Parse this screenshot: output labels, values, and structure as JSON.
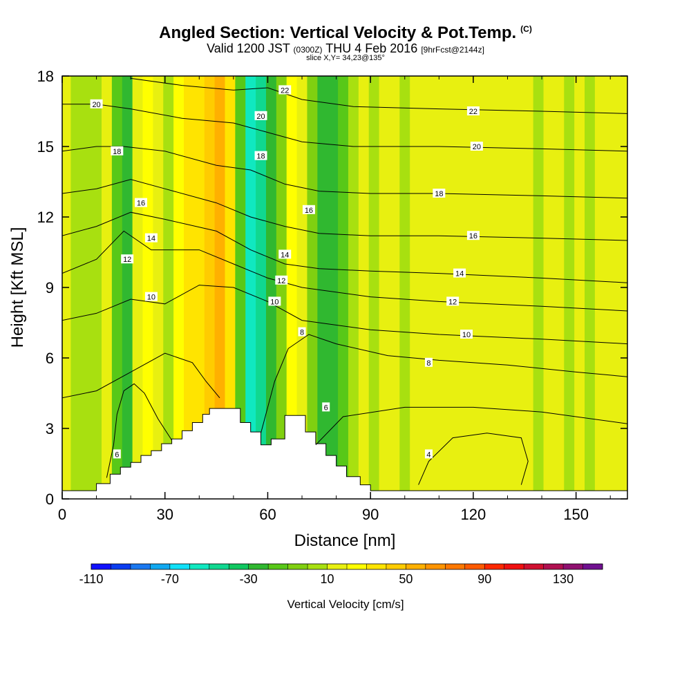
{
  "header": {
    "title": "Angled Section: Vertical Velocity & Pot.Temp.",
    "title_suffix": "(C)",
    "subtitle_a": "Valid 1200 JST",
    "subtitle_b": "(0300Z)",
    "subtitle_c": "THU 4 Feb 2016",
    "subtitle_d": "[9hrFcst@2144z]",
    "slice": "slice X,Y= 34,23@135°"
  },
  "chart_data": {
    "type": "heatmap",
    "title": "Angled Section: Vertical Velocity & Pot.Temp. (C)",
    "xlabel": "Distance [nm]",
    "ylabel": "Height [Kft MSL]",
    "xlim": [
      0,
      165
    ],
    "ylim": [
      0,
      18
    ],
    "x_ticks": [
      "0",
      "30",
      "60",
      "90",
      "120",
      "150"
    ],
    "x_tick_values": [
      0,
      30,
      60,
      90,
      120,
      150
    ],
    "y_ticks": [
      "0",
      "3",
      "6",
      "9",
      "12",
      "15",
      "18"
    ],
    "y_tick_values": [
      0,
      3,
      6,
      9,
      12,
      15,
      18
    ],
    "colorbar": {
      "title": "Vertical Velocity [cm/s]",
      "min": -110,
      "step": 10,
      "labels": [
        "-110",
        "-70",
        "-30",
        "10",
        "50",
        "90",
        "130"
      ],
      "label_values": [
        -110,
        -70,
        -30,
        10,
        50,
        90,
        130
      ],
      "colors": [
        "#1010ff",
        "#0a3cf0",
        "#1a78f0",
        "#10a8f0",
        "#10e0f8",
        "#10e8c0",
        "#10d890",
        "#10c860",
        "#30b830",
        "#58c818",
        "#80d010",
        "#a8e010",
        "#e8f010",
        "#ffff00",
        "#ffe400",
        "#ffcc00",
        "#ffb000",
        "#ff9400",
        "#ff7800",
        "#ff5a00",
        "#ff2800",
        "#f01010",
        "#d01030",
        "#b01050",
        "#901070",
        "#701090"
      ]
    },
    "velocity_columns": [
      {
        "x": 0,
        "value": 12
      },
      {
        "x": 5,
        "value": 8
      },
      {
        "x": 10,
        "value": 5
      },
      {
        "x": 13,
        "value": 15
      },
      {
        "x": 16,
        "value": -20
      },
      {
        "x": 19,
        "value": -30
      },
      {
        "x": 22,
        "value": 10
      },
      {
        "x": 25,
        "value": 22
      },
      {
        "x": 28,
        "value": 14
      },
      {
        "x": 31,
        "value": 6
      },
      {
        "x": 34,
        "value": 20
      },
      {
        "x": 37,
        "value": 32
      },
      {
        "x": 40,
        "value": 38
      },
      {
        "x": 43,
        "value": 48
      },
      {
        "x": 46,
        "value": 50
      },
      {
        "x": 49,
        "value": 34
      },
      {
        "x": 52,
        "value": -20
      },
      {
        "x": 55,
        "value": -55
      },
      {
        "x": 58,
        "value": -48
      },
      {
        "x": 61,
        "value": -30
      },
      {
        "x": 64,
        "value": -5
      },
      {
        "x": 67,
        "value": 22
      },
      {
        "x": 70,
        "value": 14
      },
      {
        "x": 73,
        "value": -10
      },
      {
        "x": 76,
        "value": -22
      },
      {
        "x": 79,
        "value": -28
      },
      {
        "x": 82,
        "value": -12
      },
      {
        "x": 85,
        "value": 8
      },
      {
        "x": 88,
        "value": 12
      },
      {
        "x": 91,
        "value": 2
      },
      {
        "x": 94,
        "value": 10
      },
      {
        "x": 97,
        "value": 14
      },
      {
        "x": 100,
        "value": 0
      },
      {
        "x": 103,
        "value": 12
      },
      {
        "x": 106,
        "value": 10
      },
      {
        "x": 109,
        "value": 14
      },
      {
        "x": 112,
        "value": 12
      },
      {
        "x": 115,
        "value": 16
      },
      {
        "x": 118,
        "value": 12
      },
      {
        "x": 121,
        "value": 14
      },
      {
        "x": 124,
        "value": 10
      },
      {
        "x": 127,
        "value": 12
      },
      {
        "x": 130,
        "value": 14
      },
      {
        "x": 133,
        "value": 10
      },
      {
        "x": 136,
        "value": 12
      },
      {
        "x": 139,
        "value": 4
      },
      {
        "x": 142,
        "value": 12
      },
      {
        "x": 145,
        "value": 16
      },
      {
        "x": 148,
        "value": 6
      },
      {
        "x": 151,
        "value": 10
      },
      {
        "x": 154,
        "value": 8
      },
      {
        "x": 157,
        "value": 12
      },
      {
        "x": 160,
        "value": 10
      },
      {
        "x": 163,
        "value": 12
      },
      {
        "x": 165,
        "value": 10
      }
    ],
    "terrain": [
      [
        0,
        0.35
      ],
      [
        10,
        0.35
      ],
      [
        10,
        0.65
      ],
      [
        14,
        0.65
      ],
      [
        14,
        1.05
      ],
      [
        17,
        1.05
      ],
      [
        17,
        1.35
      ],
      [
        20,
        1.35
      ],
      [
        20,
        1.55
      ],
      [
        23,
        1.55
      ],
      [
        23,
        1.85
      ],
      [
        26,
        1.85
      ],
      [
        26,
        2.05
      ],
      [
        29,
        2.05
      ],
      [
        29,
        2.35
      ],
      [
        32,
        2.35
      ],
      [
        32,
        2.55
      ],
      [
        35,
        2.55
      ],
      [
        35,
        2.9
      ],
      [
        38,
        2.9
      ],
      [
        38,
        3.25
      ],
      [
        41,
        3.25
      ],
      [
        41,
        3.6
      ],
      [
        43,
        3.6
      ],
      [
        43,
        3.85
      ],
      [
        52,
        3.85
      ],
      [
        52,
        3.25
      ],
      [
        55,
        3.25
      ],
      [
        55,
        2.85
      ],
      [
        58,
        2.85
      ],
      [
        58,
        2.3
      ],
      [
        61,
        2.3
      ],
      [
        61,
        2.55
      ],
      [
        65,
        2.55
      ],
      [
        65,
        3.55
      ],
      [
        71,
        3.55
      ],
      [
        71,
        2.85
      ],
      [
        74,
        2.85
      ],
      [
        74,
        2.35
      ],
      [
        77,
        2.35
      ],
      [
        77,
        1.85
      ],
      [
        80,
        1.85
      ],
      [
        80,
        1.4
      ],
      [
        83,
        1.4
      ],
      [
        83,
        0.95
      ],
      [
        87,
        0.95
      ],
      [
        87,
        0.6
      ],
      [
        90,
        0.6
      ],
      [
        90,
        0.35
      ],
      [
        165,
        0.35
      ]
    ],
    "theta_contours": [
      {
        "level": 4,
        "label": "4",
        "points": [
          [
            104,
            0.6
          ],
          [
            107,
            1.6
          ],
          [
            114,
            2.6
          ],
          [
            124,
            2.8
          ],
          [
            134,
            2.6
          ],
          [
            136,
            1.6
          ],
          [
            134,
            0.6
          ]
        ]
      },
      {
        "level": 6,
        "label": "6",
        "points": [
          [
            13,
            0.9
          ],
          [
            15,
            2.3
          ],
          [
            16,
            3.6
          ],
          [
            18,
            4.6
          ],
          [
            21,
            4.9
          ],
          [
            24,
            4.5
          ],
          [
            28,
            3.4
          ],
          [
            32,
            2.5
          ]
        ],
        "label_at": [
          16,
          1.9
        ]
      },
      {
        "level": 6,
        "label": "6",
        "points": [
          [
            74,
            2.3
          ],
          [
            82,
            3.5
          ],
          [
            100,
            3.9
          ],
          [
            120,
            3.9
          ],
          [
            140,
            3.7
          ],
          [
            165,
            3.2
          ]
        ],
        "label_at": [
          77,
          3.9
        ]
      },
      {
        "level": 8,
        "label": "8",
        "points": [
          [
            0,
            4.3
          ],
          [
            10,
            4.6
          ],
          [
            20,
            5.4
          ],
          [
            30,
            6.2
          ],
          [
            38,
            5.8
          ],
          [
            42,
            5.0
          ],
          [
            46,
            4.3
          ]
        ],
        "label_at": [
          70,
          7.1
        ]
      },
      {
        "level": 8,
        "label": "8",
        "points": [
          [
            58,
            2.8
          ],
          [
            62,
            5.0
          ],
          [
            66,
            6.4
          ],
          [
            72,
            7.0
          ],
          [
            80,
            6.6
          ],
          [
            95,
            6.1
          ],
          [
            110,
            5.9
          ],
          [
            130,
            5.7
          ],
          [
            150,
            5.4
          ],
          [
            165,
            5.2
          ]
        ],
        "label_at": [
          107,
          5.8
        ]
      },
      {
        "level": 10,
        "label": "10",
        "points": [
          [
            0,
            7.6
          ],
          [
            10,
            7.9
          ],
          [
            20,
            8.5
          ],
          [
            30,
            8.3
          ],
          [
            40,
            9.1
          ],
          [
            50,
            9.0
          ],
          [
            60,
            8.4
          ],
          [
            70,
            7.6
          ],
          [
            90,
            7.2
          ],
          [
            110,
            7.0
          ],
          [
            140,
            6.8
          ],
          [
            165,
            6.6
          ]
        ],
        "label_at": [
          118,
          7.0
        ]
      },
      {
        "level": 12,
        "label": "12",
        "points": [
          [
            0,
            9.6
          ],
          [
            10,
            10.2
          ],
          [
            18,
            11.4
          ],
          [
            26,
            10.6
          ],
          [
            40,
            10.6
          ],
          [
            50,
            10.0
          ],
          [
            60,
            9.4
          ],
          [
            70,
            9.0
          ],
          [
            90,
            8.6
          ],
          [
            110,
            8.4
          ],
          [
            140,
            8.2
          ],
          [
            165,
            8.0
          ]
        ],
        "label_at": [
          114,
          8.4
        ]
      },
      {
        "level": 14,
        "label": "14",
        "points": [
          [
            0,
            11.2
          ],
          [
            10,
            11.6
          ],
          [
            20,
            12.2
          ],
          [
            30,
            11.9
          ],
          [
            45,
            11.4
          ],
          [
            55,
            10.6
          ],
          [
            65,
            10.0
          ],
          [
            75,
            9.8
          ],
          [
            90,
            9.7
          ],
          [
            110,
            9.6
          ],
          [
            140,
            9.4
          ],
          [
            165,
            9.2
          ]
        ],
        "label_at": [
          116,
          9.6
        ]
      },
      {
        "level": 16,
        "label": "16",
        "points": [
          [
            0,
            13.0
          ],
          [
            10,
            13.2
          ],
          [
            20,
            13.6
          ],
          [
            30,
            13.2
          ],
          [
            45,
            12.6
          ],
          [
            55,
            12.0
          ],
          [
            65,
            11.6
          ],
          [
            75,
            11.3
          ],
          [
            90,
            11.2
          ],
          [
            110,
            11.2
          ],
          [
            140,
            11.1
          ],
          [
            165,
            11.0
          ]
        ],
        "label_at": [
          120,
          11.2
        ]
      },
      {
        "level": 18,
        "label": "18",
        "points": [
          [
            0,
            14.8
          ],
          [
            10,
            15.0
          ],
          [
            18,
            15.0
          ],
          [
            30,
            14.8
          ],
          [
            45,
            14.2
          ],
          [
            55,
            14.0
          ],
          [
            65,
            13.4
          ],
          [
            75,
            13.1
          ],
          [
            90,
            13.0
          ],
          [
            110,
            13.0
          ],
          [
            140,
            12.9
          ],
          [
            165,
            12.8
          ]
        ],
        "label_at": [
          110,
          13.0
        ]
      },
      {
        "level": 20,
        "label": "20",
        "points": [
          [
            0,
            16.8
          ],
          [
            10,
            16.8
          ],
          [
            20,
            16.6
          ],
          [
            35,
            16.2
          ],
          [
            50,
            16.0
          ],
          [
            60,
            15.6
          ],
          [
            70,
            15.2
          ],
          [
            85,
            15.0
          ],
          [
            110,
            15.0
          ],
          [
            140,
            14.9
          ],
          [
            165,
            14.8
          ]
        ],
        "label_at": [
          121,
          15.0
        ]
      },
      {
        "level": 22,
        "label": "22",
        "points": [
          [
            20,
            17.9
          ],
          [
            35,
            17.6
          ],
          [
            50,
            17.4
          ],
          [
            60,
            17.5
          ],
          [
            70,
            17.0
          ],
          [
            85,
            16.7
          ],
          [
            110,
            16.6
          ],
          [
            140,
            16.5
          ],
          [
            165,
            16.4
          ]
        ],
        "label_at": [
          120,
          16.5
        ]
      }
    ],
    "extra_contour_labels": [
      {
        "label": "20",
        "x": 10,
        "y": 16.8
      },
      {
        "label": "18",
        "x": 16,
        "y": 14.8
      },
      {
        "label": "16",
        "x": 23,
        "y": 12.6
      },
      {
        "label": "14",
        "x": 26,
        "y": 11.1
      },
      {
        "label": "12",
        "x": 19,
        "y": 10.2
      },
      {
        "label": "10",
        "x": 26,
        "y": 8.6
      },
      {
        "label": "22",
        "x": 65,
        "y": 17.4
      },
      {
        "label": "20",
        "x": 58,
        "y": 16.3
      },
      {
        "label": "18",
        "x": 58,
        "y": 14.6
      },
      {
        "label": "16",
        "x": 72,
        "y": 12.3
      },
      {
        "label": "14",
        "x": 65,
        "y": 10.4
      },
      {
        "label": "12",
        "x": 64,
        "y": 9.3
      },
      {
        "label": "10",
        "x": 62,
        "y": 8.4
      },
      {
        "label": "4",
        "x": 107,
        "y": 1.9
      }
    ]
  }
}
